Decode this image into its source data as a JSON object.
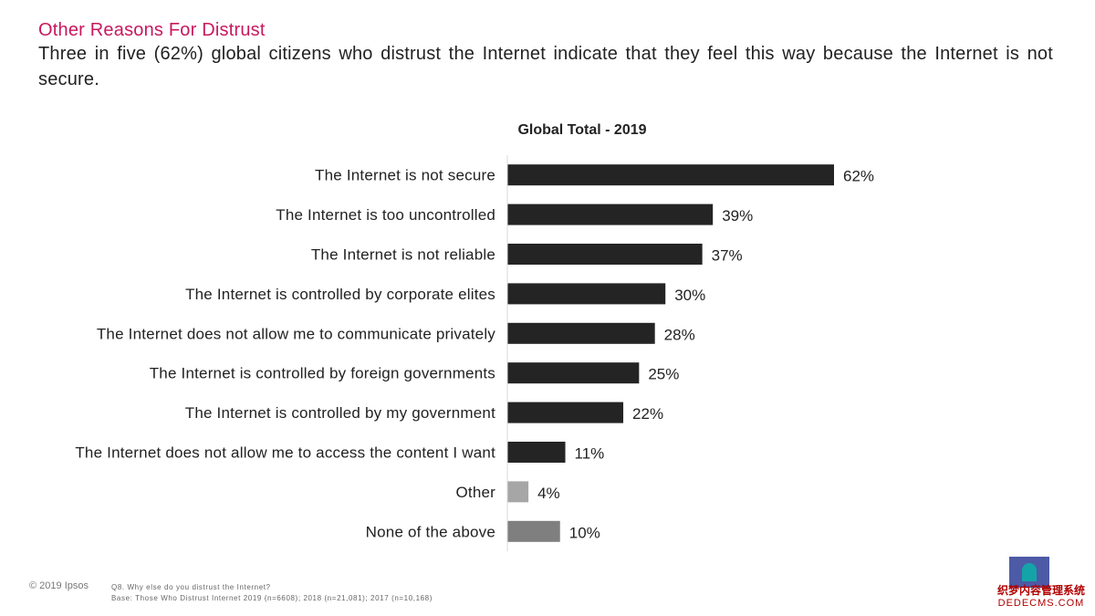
{
  "slide": {
    "title": "Other Reasons For Distrust",
    "subtitle": "Three in five (62%) global citizens who distrust the Internet indicate that they feel this way because the Internet is not secure."
  },
  "footer": {
    "copyright": "© 2019 Ipsos",
    "question": "Q8.  Why else do you distrust the Internet?",
    "base": "Base: Those Who Distrust Internet 2019 (n=6608); 2018 (n=21,081); 2017 (n=10,168)"
  },
  "watermark": {
    "line1": "织梦内容管理系统",
    "line2": "DEDECMS.COM"
  },
  "colors": {
    "title": "#c8175d",
    "bar_main": "#242424",
    "bar_other": "#a6a6a6",
    "bar_none": "#7f7f7f"
  },
  "chart_data": {
    "type": "bar",
    "orientation": "horizontal",
    "title": "Global Total - 2019",
    "xlabel": "",
    "ylabel": "",
    "xlim": [
      0,
      100
    ],
    "value_suffix": "%",
    "categories": [
      "The Internet is not secure",
      "The Internet is too uncontrolled",
      "The Internet is not reliable",
      "The Internet is controlled by corporate elites",
      "The Internet does not allow me to communicate privately",
      "The Internet is controlled by foreign governments",
      "The Internet is controlled by my government",
      "The Internet does not allow me to access the content I want",
      "Other",
      "None of the above"
    ],
    "values": [
      62,
      39,
      37,
      30,
      28,
      25,
      22,
      11,
      4,
      10
    ],
    "bar_colors": [
      "#242424",
      "#242424",
      "#242424",
      "#242424",
      "#242424",
      "#242424",
      "#242424",
      "#242424",
      "#a6a6a6",
      "#7f7f7f"
    ]
  }
}
